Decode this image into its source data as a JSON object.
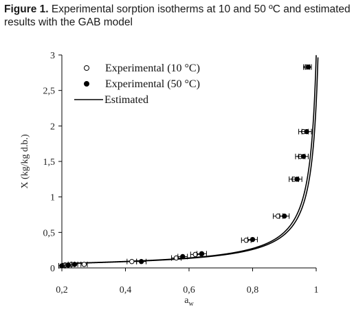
{
  "caption": {
    "label": "Figure 1.",
    "text": " Experimental sorption isotherms at 10 and 50 ºC and estimated results with the GAB model"
  },
  "chart_data": {
    "type": "scatter",
    "title": "",
    "xlabel_main": "a",
    "xlabel_sub": "w",
    "ylabel": "X (kg/kg d.b.)",
    "xlim": [
      0.2,
      1.0
    ],
    "ylim": [
      0,
      3
    ],
    "x_ticks": [
      "0,2",
      "0,4",
      "0,6",
      "0,8",
      "1"
    ],
    "x_tick_values": [
      0.2,
      0.4,
      0.6,
      0.8,
      1.0
    ],
    "y_ticks": [
      "0",
      "0,5",
      "1",
      "1,5",
      "2",
      "2,5",
      "3"
    ],
    "y_tick_values": [
      0,
      0.5,
      1.0,
      1.5,
      2.0,
      2.5,
      3.0
    ],
    "grid": false,
    "legend_position": "top-left",
    "series": [
      {
        "name": "Experimental (10 °C)",
        "marker": "open-circle",
        "points": [
          {
            "x": 0.21,
            "y": 0.04,
            "xerr": 0.01
          },
          {
            "x": 0.23,
            "y": 0.05,
            "xerr": 0.01
          },
          {
            "x": 0.27,
            "y": 0.05,
            "xerr": 0.01
          },
          {
            "x": 0.42,
            "y": 0.09,
            "xerr": 0.015
          },
          {
            "x": 0.56,
            "y": 0.14,
            "xerr": 0.015
          },
          {
            "x": 0.62,
            "y": 0.19,
            "xerr": 0.015
          },
          {
            "x": 0.78,
            "y": 0.39,
            "xerr": 0.015
          },
          {
            "x": 0.88,
            "y": 0.73,
            "xerr": 0.015
          },
          {
            "x": 0.93,
            "y": 1.25,
            "xerr": 0.015
          },
          {
            "x": 0.95,
            "y": 1.57,
            "xerr": 0.015
          },
          {
            "x": 0.96,
            "y": 1.92,
            "xerr": 0.015
          },
          {
            "x": 0.97,
            "y": 2.83,
            "xerr": 0.01
          }
        ]
      },
      {
        "name": "Experimental (50 °C)",
        "marker": "filled-circle",
        "points": [
          {
            "x": 0.2,
            "y": 0.03,
            "xerr": 0.01
          },
          {
            "x": 0.22,
            "y": 0.04,
            "xerr": 0.01
          },
          {
            "x": 0.24,
            "y": 0.05,
            "xerr": 0.01
          },
          {
            "x": 0.45,
            "y": 0.09,
            "xerr": 0.015
          },
          {
            "x": 0.58,
            "y": 0.16,
            "xerr": 0.015
          },
          {
            "x": 0.64,
            "y": 0.2,
            "xerr": 0.015
          },
          {
            "x": 0.8,
            "y": 0.4,
            "xerr": 0.015
          },
          {
            "x": 0.9,
            "y": 0.73,
            "xerr": 0.015
          },
          {
            "x": 0.94,
            "y": 1.25,
            "xerr": 0.015
          },
          {
            "x": 0.96,
            "y": 1.57,
            "xerr": 0.015
          },
          {
            "x": 0.97,
            "y": 1.92,
            "xerr": 0.015
          },
          {
            "x": 0.975,
            "y": 2.83,
            "xerr": 0.01
          }
        ]
      },
      {
        "name": "Estimated",
        "marker": "line",
        "curves": [
          {
            "label": "10 °C",
            "xm": 0.06,
            "c": 20,
            "k": 0.98
          },
          {
            "label": "50 °C",
            "xm": 0.058,
            "c": 20,
            "k": 0.975
          }
        ]
      }
    ]
  }
}
